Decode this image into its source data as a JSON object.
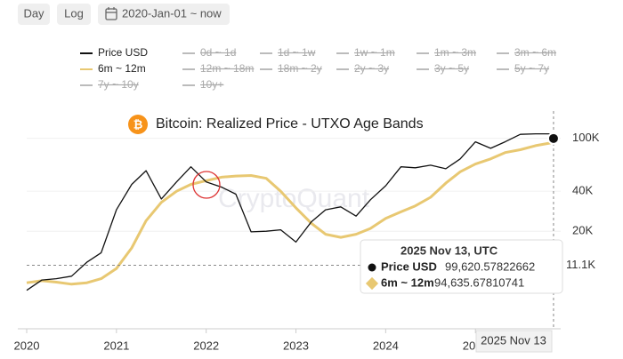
{
  "controls": [
    "Day",
    "Log",
    "2020-Jan-01 ~ now"
  ],
  "chart_data": {
    "type": "line",
    "title": "Bitcoin: Realized Price - UTXO Age Bands",
    "watermark": "CryptoQuant",
    "log": true,
    "grid": true,
    "x": [
      2020,
      2020.17,
      2020.33,
      2020.5,
      2020.67,
      2020.83,
      2021,
      2021.17,
      2021.33,
      2021.5,
      2021.67,
      2021.83,
      2022,
      2022.17,
      2022.33,
      2022.5,
      2022.67,
      2022.83,
      2023,
      2023.17,
      2023.33,
      2023.5,
      2023.67,
      2023.83,
      2024,
      2024.17,
      2024.33,
      2024.5,
      2024.67,
      2024.83,
      2025,
      2025.17,
      2025.33,
      2025.5,
      2025.67,
      2025.83,
      2025.87
    ],
    "xlim": [
      2020,
      2025.95
    ],
    "xticks": [
      2020,
      2021,
      2022,
      2023,
      2024,
      2025
    ],
    "ylim": [
      3700,
      160000
    ],
    "yticks": [
      {
        "value": 20000,
        "label": "20K"
      },
      {
        "value": 40000,
        "label": "40K"
      },
      {
        "value": 100000,
        "label": "100K"
      }
    ],
    "series": [
      {
        "name": "Price USD",
        "color": "#111111",
        "values": [
          7200,
          8600,
          8800,
          9200,
          11700,
          13800,
          29000,
          45000,
          57000,
          35000,
          47000,
          61000,
          47000,
          43000,
          38000,
          19800,
          20000,
          20500,
          16600,
          23500,
          29000,
          30500,
          26000,
          34500,
          44000,
          61000,
          60000,
          62700,
          59000,
          70000,
          94000,
          84000,
          94000,
          107000,
          108000,
          108000,
          99620.57822662
        ]
      },
      {
        "name": "6m ~ 12m",
        "color": "#e8c872",
        "values": [
          8200,
          8500,
          8300,
          8000,
          8200,
          8800,
          10500,
          15000,
          24000,
          33000,
          40000,
          45000,
          48000,
          51000,
          52000,
          52500,
          50000,
          40000,
          30000,
          23000,
          19000,
          18000,
          19000,
          21000,
          25000,
          28000,
          31000,
          36000,
          46000,
          56000,
          64000,
          70000,
          78000,
          82000,
          88000,
          92000,
          94635.67810741
        ]
      }
    ],
    "hidden_series": [
      "0d ~ 1d",
      "1d ~ 1w",
      "1w ~ 1m",
      "1m ~ 3m",
      "3m ~ 6m",
      "12m ~ 18m",
      "18m ~ 2y",
      "2y ~ 3y",
      "3y ~ 5y",
      "5y ~ 7y",
      "7y ~ 10y",
      "10y+"
    ],
    "crosshair": {
      "value": 11100,
      "label": "11.1K",
      "date_label": "2025 Nov 13"
    },
    "tooltip": {
      "title": "2025 Nov 13, UTC",
      "value_labels": [
        "99,620.57822662",
        "94,635.67810741"
      ]
    }
  }
}
